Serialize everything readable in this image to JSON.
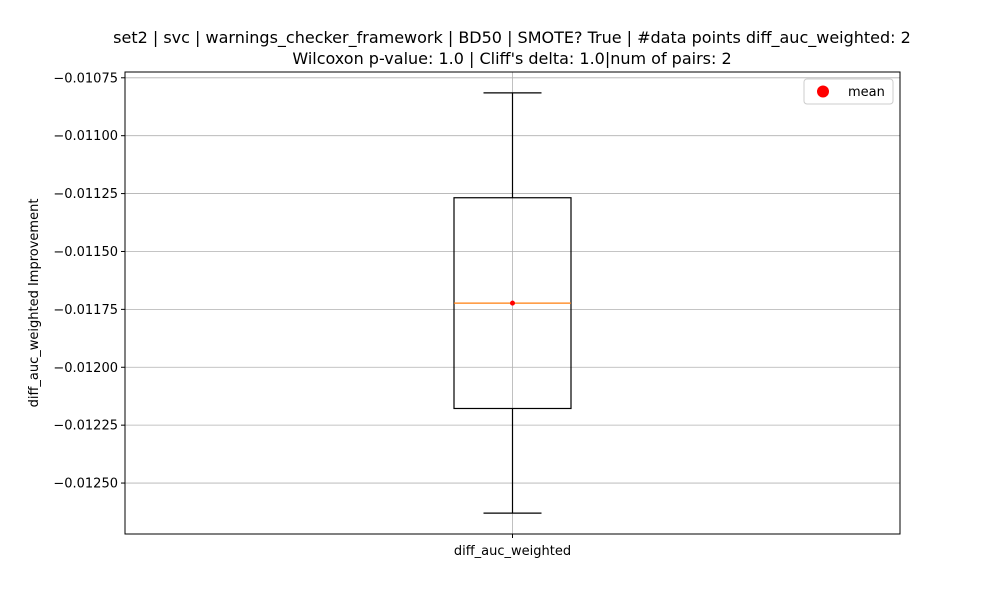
{
  "chart_data": {
    "type": "box",
    "title_line1": "set2 | svc | warnings_checker_framework | BD50 | SMOTE? True | #data points diff_auc_weighted: 2",
    "title_line2": "Wilcoxon p-value: 1.0 | Cliff's delta: 1.0|num of pairs: 2",
    "xlabel": "",
    "ylabel": "diff_auc_weighted Improvement",
    "categories": [
      "diff_auc_weighted"
    ],
    "ylim": [
      -0.01272,
      -0.010725
    ],
    "yticks": [
      -0.01075,
      -0.011,
      -0.01125,
      -0.0115,
      -0.01175,
      -0.012,
      -0.01225,
      -0.0125
    ],
    "ytick_labels": [
      "−0.01075",
      "−0.01100",
      "−0.01125",
      "−0.01150",
      "−0.01175",
      "−0.01200",
      "−0.01225",
      "−0.01250"
    ],
    "box": {
      "whisker_low": -0.01263,
      "q1": -0.012178,
      "median": -0.011723,
      "q3": -0.011268,
      "whisker_high": -0.010815,
      "mean": -0.011723
    },
    "legend": {
      "label": "mean",
      "placement": "upper-right"
    },
    "grid": true,
    "colors": {
      "median": "#ff7f0e",
      "mean": "#ff0000",
      "box": "#000000",
      "grid": "#b0b0b0"
    }
  }
}
